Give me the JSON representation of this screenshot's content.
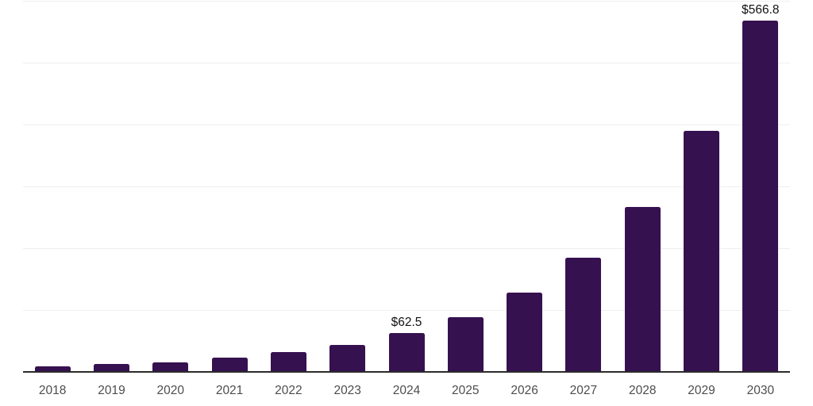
{
  "chart_data": {
    "type": "bar",
    "title": "",
    "categories": [
      "2018",
      "2019",
      "2020",
      "2021",
      "2022",
      "2023",
      "2024",
      "2025",
      "2026",
      "2027",
      "2028",
      "2029",
      "2030"
    ],
    "values": [
      9.5,
      13.0,
      15.4,
      22.5,
      31.5,
      44.0,
      62.5,
      88.7,
      128.3,
      184.8,
      266.5,
      388.4,
      566.8
    ],
    "value_labels": [
      {
        "category_index": 6,
        "text": "$62.5"
      },
      {
        "category_index": 12,
        "text": "$566.8"
      }
    ],
    "xlabel": "",
    "ylabel": "",
    "ylim": [
      0,
      600
    ],
    "gridline_interval": 100,
    "grid": "horizontal-only",
    "legend": "none",
    "y_axis_tick_labels": "hidden",
    "colors": {
      "bar": "#36114f",
      "axis_line": "#2b2b2b",
      "gridline": "#efefef",
      "category_label": "#4d4d4d",
      "value_label": "#111111",
      "background": "#ffffff"
    }
  }
}
